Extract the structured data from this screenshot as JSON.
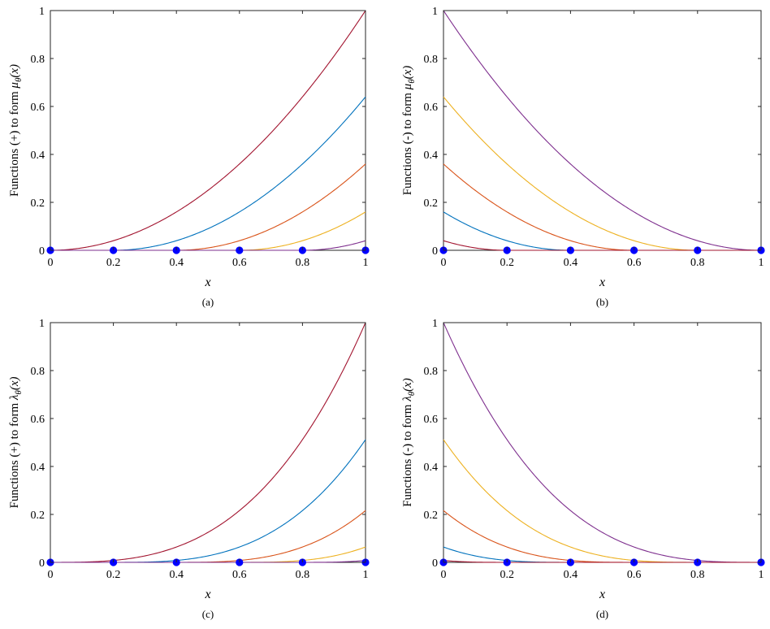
{
  "figure": {
    "panels": [
      {
        "ylabel_text": "Functions (+) to form ",
        "ylabel_symbol": "μ",
        "caption": "(a)"
      },
      {
        "ylabel_text": "Functions (-) to form ",
        "ylabel_symbol": "μ",
        "caption": "(b)"
      },
      {
        "ylabel_text": "Functions (+) to form ",
        "ylabel_symbol": "λ",
        "caption": "(c)"
      },
      {
        "ylabel_text": "Functions (-) to form ",
        "ylabel_symbol": "λ",
        "caption": "(d)"
      }
    ],
    "subscript": "θ",
    "ylabel_arg": "(x)"
  },
  "chart_data": [
    {
      "type": "line",
      "xlabel": "x",
      "xlim": [
        0,
        1
      ],
      "ylim": [
        0,
        1
      ],
      "xticks": [
        0,
        0.2,
        0.4,
        0.6,
        0.8,
        1
      ],
      "yticks": [
        0,
        0.2,
        0.4,
        0.6,
        0.8,
        1
      ],
      "grid": false,
      "x": [
        0,
        0.2,
        0.4,
        0.6,
        0.8,
        1
      ],
      "series": [
        {
          "color": "#a2142f",
          "values": [
            0,
            0.04,
            0.16,
            0.36,
            0.64,
            1.0
          ]
        },
        {
          "color": "#0072bd",
          "values": [
            0,
            0,
            0.04,
            0.16,
            0.36,
            0.64
          ]
        },
        {
          "color": "#d95319",
          "values": [
            0,
            0,
            0,
            0.04,
            0.16,
            0.36
          ]
        },
        {
          "color": "#edb120",
          "values": [
            0,
            0,
            0,
            0,
            0.04,
            0.16
          ]
        },
        {
          "color": "#7e2f8e",
          "values": [
            0,
            0,
            0,
            0,
            0,
            0.04
          ]
        }
      ],
      "markers": {
        "color": "#0000ff",
        "x": [
          0,
          0.2,
          0.4,
          0.6,
          0.8,
          1
        ],
        "y": [
          0,
          0,
          0,
          0,
          0,
          0
        ]
      }
    },
    {
      "type": "line",
      "xlabel": "x",
      "xlim": [
        0,
        1
      ],
      "ylim": [
        0,
        1
      ],
      "xticks": [
        0,
        0.2,
        0.4,
        0.6,
        0.8,
        1
      ],
      "yticks": [
        0,
        0.2,
        0.4,
        0.6,
        0.8,
        1
      ],
      "grid": false,
      "x": [
        0,
        0.2,
        0.4,
        0.6,
        0.8,
        1
      ],
      "series": [
        {
          "color": "#7e2f8e",
          "values": [
            1.0,
            0.64,
            0.36,
            0.16,
            0.04,
            0
          ]
        },
        {
          "color": "#edb120",
          "values": [
            0.64,
            0.36,
            0.16,
            0.04,
            0,
            0
          ]
        },
        {
          "color": "#d95319",
          "values": [
            0.36,
            0.16,
            0.04,
            0,
            0,
            0
          ]
        },
        {
          "color": "#0072bd",
          "values": [
            0.16,
            0.04,
            0,
            0,
            0,
            0
          ]
        },
        {
          "color": "#a2142f",
          "values": [
            0.04,
            0,
            0,
            0,
            0,
            0
          ]
        }
      ],
      "markers": {
        "color": "#0000ff",
        "x": [
          0,
          0.2,
          0.4,
          0.6,
          0.8,
          1
        ],
        "y": [
          0,
          0,
          0,
          0,
          0,
          0
        ]
      }
    },
    {
      "type": "line",
      "xlabel": "x",
      "xlim": [
        0,
        1
      ],
      "ylim": [
        0,
        1
      ],
      "xticks": [
        0,
        0.2,
        0.4,
        0.6,
        0.8,
        1
      ],
      "yticks": [
        0,
        0.2,
        0.4,
        0.6,
        0.8,
        1
      ],
      "grid": false,
      "x": [
        0,
        0.2,
        0.4,
        0.6,
        0.8,
        1
      ],
      "series": [
        {
          "color": "#a2142f",
          "values": [
            0,
            0.008,
            0.064,
            0.216,
            0.512,
            1.0
          ]
        },
        {
          "color": "#0072bd",
          "values": [
            0,
            0,
            0.008,
            0.064,
            0.216,
            0.512
          ]
        },
        {
          "color": "#d95319",
          "values": [
            0,
            0,
            0,
            0.008,
            0.064,
            0.216
          ]
        },
        {
          "color": "#edb120",
          "values": [
            0,
            0,
            0,
            0,
            0.008,
            0.064
          ]
        },
        {
          "color": "#7e2f8e",
          "values": [
            0,
            0,
            0,
            0,
            0,
            0.008
          ]
        }
      ],
      "markers": {
        "color": "#0000ff",
        "x": [
          0,
          0.2,
          0.4,
          0.6,
          0.8,
          1
        ],
        "y": [
          0,
          0,
          0,
          0,
          0,
          0
        ]
      }
    },
    {
      "type": "line",
      "xlabel": "x",
      "xlim": [
        0,
        1
      ],
      "ylim": [
        0,
        1
      ],
      "xticks": [
        0,
        0.2,
        0.4,
        0.6,
        0.8,
        1
      ],
      "yticks": [
        0,
        0.2,
        0.4,
        0.6,
        0.8,
        1
      ],
      "grid": false,
      "x": [
        0,
        0.2,
        0.4,
        0.6,
        0.8,
        1
      ],
      "series": [
        {
          "color": "#7e2f8e",
          "values": [
            1.0,
            0.512,
            0.216,
            0.064,
            0.008,
            0
          ]
        },
        {
          "color": "#edb120",
          "values": [
            0.512,
            0.216,
            0.064,
            0.008,
            0,
            0
          ]
        },
        {
          "color": "#d95319",
          "values": [
            0.216,
            0.064,
            0.008,
            0,
            0,
            0
          ]
        },
        {
          "color": "#0072bd",
          "values": [
            0.064,
            0.008,
            0,
            0,
            0,
            0
          ]
        },
        {
          "color": "#a2142f",
          "values": [
            0.008,
            0,
            0,
            0,
            0,
            0
          ]
        }
      ],
      "markers": {
        "color": "#0000ff",
        "x": [
          0,
          0.2,
          0.4,
          0.6,
          0.8,
          1
        ],
        "y": [
          0,
          0,
          0,
          0,
          0,
          0
        ]
      }
    }
  ]
}
